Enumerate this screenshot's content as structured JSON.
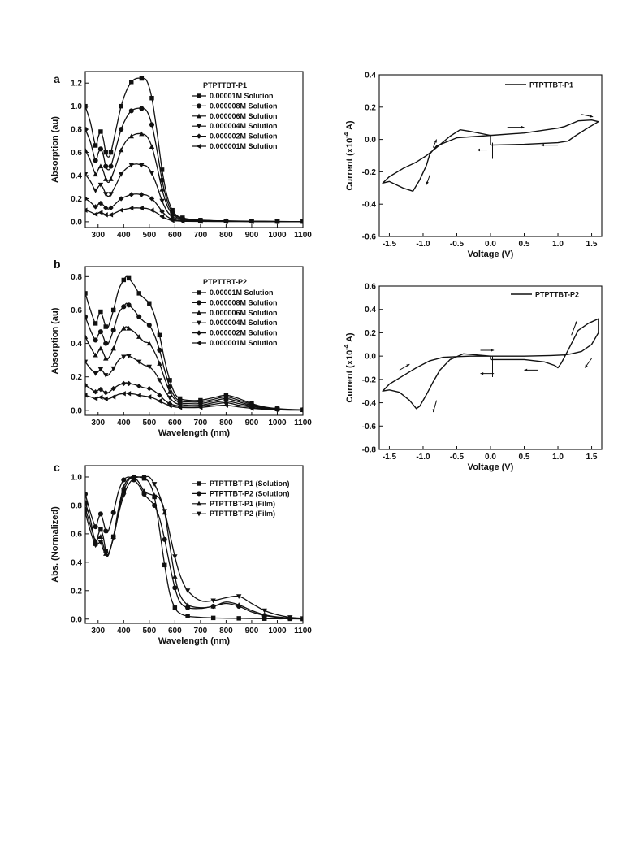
{
  "chart_data": [
    {
      "id": "a",
      "panel_label": "a",
      "type": "line",
      "xlim": [
        250,
        1100
      ],
      "ylim": [
        -0.05,
        1.3
      ],
      "xticks": [
        300,
        400,
        500,
        600,
        700,
        800,
        900,
        1000,
        1100
      ],
      "yticks": [
        0.0,
        0.2,
        0.4,
        0.6,
        0.8,
        1.0,
        1.2
      ],
      "xlabel": "",
      "ylabel": "Absorption (au)",
      "legend_title": "PTPTTBT-P1",
      "legend_position": "top-right",
      "x": [
        250,
        270,
        290,
        300,
        310,
        320,
        330,
        340,
        350,
        370,
        390,
        410,
        430,
        450,
        470,
        490,
        510,
        530,
        550,
        570,
        590,
        610,
        630,
        650,
        700,
        750,
        800,
        850,
        900,
        950,
        1000,
        1050,
        1100
      ],
      "series": [
        {
          "name": "0.00001M Solution",
          "marker": "square",
          "values": [
            1.0,
            0.86,
            0.66,
            0.73,
            0.78,
            0.72,
            0.6,
            0.56,
            0.6,
            0.8,
            1.0,
            1.13,
            1.21,
            1.24,
            1.24,
            1.22,
            1.07,
            0.78,
            0.45,
            0.22,
            0.1,
            0.05,
            0.035,
            0.025,
            0.015,
            0.01,
            0.008,
            0.006,
            0.005,
            0.004,
            0.003,
            0.002,
            0.002
          ]
        },
        {
          "name": "0.000008M Solution",
          "marker": "circle",
          "values": [
            0.8,
            0.69,
            0.53,
            0.59,
            0.63,
            0.58,
            0.48,
            0.45,
            0.48,
            0.64,
            0.8,
            0.9,
            0.96,
            0.98,
            0.98,
            0.96,
            0.84,
            0.62,
            0.36,
            0.18,
            0.08,
            0.045,
            0.03,
            0.02,
            0.012,
            0.009,
            0.007,
            0.005,
            0.004,
            0.003,
            0.002,
            0.002,
            0.002
          ]
        },
        {
          "name": "0.000006M Solution",
          "marker": "triangle-up",
          "values": [
            0.62,
            0.53,
            0.41,
            0.45,
            0.48,
            0.44,
            0.37,
            0.34,
            0.37,
            0.49,
            0.62,
            0.7,
            0.74,
            0.76,
            0.76,
            0.74,
            0.65,
            0.48,
            0.28,
            0.14,
            0.065,
            0.035,
            0.025,
            0.018,
            0.01,
            0.008,
            0.006,
            0.005,
            0.004,
            0.003,
            0.002,
            0.002,
            0.002
          ]
        },
        {
          "name": "0.000004M Solution",
          "marker": "triangle-down",
          "values": [
            0.41,
            0.35,
            0.27,
            0.3,
            0.32,
            0.29,
            0.24,
            0.22,
            0.24,
            0.32,
            0.41,
            0.46,
            0.49,
            0.5,
            0.49,
            0.48,
            0.42,
            0.31,
            0.18,
            0.09,
            0.045,
            0.025,
            0.018,
            0.013,
            0.008,
            0.006,
            0.005,
            0.004,
            0.003,
            0.002,
            0.002,
            0.002,
            0.001
          ]
        },
        {
          "name": "0.000002M Solution",
          "marker": "diamond",
          "values": [
            0.2,
            0.17,
            0.13,
            0.15,
            0.16,
            0.145,
            0.12,
            0.11,
            0.12,
            0.16,
            0.2,
            0.22,
            0.235,
            0.24,
            0.235,
            0.23,
            0.2,
            0.15,
            0.09,
            0.045,
            0.022,
            0.013,
            0.009,
            0.007,
            0.005,
            0.004,
            0.003,
            0.003,
            0.002,
            0.002,
            0.001,
            0.001,
            0.001
          ]
        },
        {
          "name": "0.000001M Solution",
          "marker": "triangle-left",
          "values": [
            0.1,
            0.085,
            0.065,
            0.075,
            0.08,
            0.072,
            0.06,
            0.055,
            0.06,
            0.08,
            0.1,
            0.11,
            0.118,
            0.12,
            0.118,
            0.115,
            0.1,
            0.075,
            0.045,
            0.023,
            0.011,
            0.007,
            0.005,
            0.004,
            0.003,
            0.002,
            0.002,
            0.002,
            0.001,
            0.001,
            0.001,
            0.001,
            0.001
          ]
        }
      ]
    },
    {
      "id": "b",
      "panel_label": "b",
      "type": "line",
      "xlim": [
        250,
        1100
      ],
      "ylim": [
        -0.03,
        0.86
      ],
      "xticks": [
        300,
        400,
        500,
        600,
        700,
        800,
        900,
        1000,
        1100
      ],
      "yticks": [
        0.0,
        0.2,
        0.4,
        0.6,
        0.8
      ],
      "xlabel": "Wavelength (nm)",
      "ylabel": "Absorption (au)",
      "legend_title": "PTPTTBT-P2",
      "legend_position": "top-right",
      "x": [
        250,
        270,
        290,
        300,
        310,
        320,
        330,
        340,
        360,
        380,
        400,
        410,
        420,
        440,
        460,
        480,
        500,
        520,
        540,
        560,
        580,
        600,
        620,
        650,
        700,
        750,
        800,
        850,
        900,
        950,
        1000,
        1050,
        1100
      ],
      "series": [
        {
          "name": "0.00001M Solution",
          "marker": "square",
          "values": [
            0.7,
            0.6,
            0.52,
            0.56,
            0.59,
            0.55,
            0.5,
            0.5,
            0.6,
            0.72,
            0.78,
            0.8,
            0.79,
            0.75,
            0.7,
            0.67,
            0.64,
            0.57,
            0.45,
            0.3,
            0.18,
            0.1,
            0.07,
            0.06,
            0.06,
            0.075,
            0.09,
            0.07,
            0.04,
            0.02,
            0.01,
            0.005,
            0.003
          ]
        },
        {
          "name": "0.000008M Solution",
          "marker": "circle",
          "values": [
            0.56,
            0.48,
            0.42,
            0.45,
            0.47,
            0.44,
            0.4,
            0.4,
            0.48,
            0.58,
            0.62,
            0.64,
            0.63,
            0.6,
            0.56,
            0.53,
            0.51,
            0.45,
            0.36,
            0.24,
            0.14,
            0.08,
            0.055,
            0.05,
            0.05,
            0.065,
            0.08,
            0.06,
            0.035,
            0.017,
            0.008,
            0.004,
            0.003
          ]
        },
        {
          "name": "0.000006M Solution",
          "marker": "triangle-up",
          "values": [
            0.44,
            0.38,
            0.33,
            0.35,
            0.37,
            0.345,
            0.31,
            0.31,
            0.37,
            0.45,
            0.49,
            0.5,
            0.49,
            0.47,
            0.44,
            0.41,
            0.4,
            0.35,
            0.28,
            0.19,
            0.11,
            0.065,
            0.045,
            0.04,
            0.04,
            0.055,
            0.07,
            0.05,
            0.03,
            0.015,
            0.007,
            0.004,
            0.002
          ]
        },
        {
          "name": "0.000004M Solution",
          "marker": "triangle-down",
          "values": [
            0.29,
            0.25,
            0.22,
            0.23,
            0.245,
            0.23,
            0.21,
            0.21,
            0.25,
            0.3,
            0.32,
            0.33,
            0.325,
            0.31,
            0.29,
            0.27,
            0.26,
            0.23,
            0.18,
            0.12,
            0.075,
            0.045,
            0.035,
            0.03,
            0.03,
            0.045,
            0.055,
            0.04,
            0.025,
            0.012,
            0.006,
            0.003,
            0.002
          ]
        },
        {
          "name": "0.000002M Solution",
          "marker": "diamond",
          "values": [
            0.15,
            0.13,
            0.11,
            0.12,
            0.125,
            0.115,
            0.105,
            0.105,
            0.13,
            0.15,
            0.16,
            0.165,
            0.16,
            0.155,
            0.145,
            0.135,
            0.13,
            0.115,
            0.09,
            0.06,
            0.04,
            0.03,
            0.025,
            0.025,
            0.025,
            0.035,
            0.045,
            0.03,
            0.018,
            0.009,
            0.004,
            0.002,
            0.001
          ]
        },
        {
          "name": "0.000001M Solution",
          "marker": "triangle-left",
          "values": [
            0.09,
            0.08,
            0.07,
            0.075,
            0.078,
            0.074,
            0.068,
            0.068,
            0.08,
            0.095,
            0.1,
            0.102,
            0.1,
            0.097,
            0.09,
            0.085,
            0.08,
            0.07,
            0.055,
            0.04,
            0.028,
            0.02,
            0.017,
            0.016,
            0.017,
            0.025,
            0.03,
            0.02,
            0.012,
            0.006,
            0.003,
            0.001,
            0.001
          ]
        }
      ]
    },
    {
      "id": "c",
      "panel_label": "c",
      "type": "line",
      "xlim": [
        250,
        1100
      ],
      "ylim": [
        -0.03,
        1.08
      ],
      "xticks": [
        300,
        400,
        500,
        600,
        700,
        800,
        900,
        1000,
        1100
      ],
      "yticks": [
        0.0,
        0.2,
        0.4,
        0.6,
        0.8,
        1.0
      ],
      "xlabel": "Wavelength (nm)",
      "ylabel": "Abs. (Normalized)",
      "legend_position": "top-right",
      "x": [
        250,
        270,
        290,
        300,
        310,
        320,
        330,
        340,
        360,
        380,
        400,
        420,
        440,
        460,
        480,
        500,
        520,
        540,
        560,
        580,
        600,
        620,
        650,
        700,
        750,
        800,
        850,
        900,
        950,
        1000,
        1050,
        1100
      ],
      "series": [
        {
          "name": "PTPTTBT-P1 (Solution)",
          "marker": "square",
          "values": [
            0.82,
            0.7,
            0.53,
            0.59,
            0.63,
            0.58,
            0.48,
            0.45,
            0.58,
            0.76,
            0.9,
            0.98,
            1.0,
            1.0,
            0.99,
            0.96,
            0.86,
            0.63,
            0.38,
            0.18,
            0.08,
            0.04,
            0.02,
            0.012,
            0.008,
            0.006,
            0.005,
            0.004,
            0.003,
            0.002,
            0.002,
            0.001
          ]
        },
        {
          "name": "PTPTTBT-P2 (Solution)",
          "marker": "circle",
          "values": [
            0.88,
            0.75,
            0.65,
            0.7,
            0.74,
            0.69,
            0.62,
            0.62,
            0.75,
            0.9,
            0.98,
            1.0,
            0.98,
            0.94,
            0.88,
            0.84,
            0.8,
            0.71,
            0.56,
            0.38,
            0.22,
            0.12,
            0.08,
            0.075,
            0.09,
            0.11,
            0.09,
            0.05,
            0.025,
            0.012,
            0.006,
            0.003
          ]
        },
        {
          "name": "PTPTTBT-P1 (Film)",
          "marker": "triangle-up",
          "values": [
            0.78,
            0.66,
            0.55,
            0.57,
            0.58,
            0.52,
            0.46,
            0.45,
            0.58,
            0.78,
            0.93,
            0.99,
            1.0,
            0.96,
            0.9,
            0.88,
            0.87,
            0.85,
            0.75,
            0.52,
            0.3,
            0.17,
            0.1,
            0.08,
            0.09,
            0.12,
            0.1,
            0.06,
            0.03,
            0.015,
            0.008,
            0.004
          ]
        },
        {
          "name": "PTPTTBT-P2 (Film)",
          "marker": "triangle-down",
          "values": [
            0.75,
            0.62,
            0.52,
            0.53,
            0.54,
            0.49,
            0.46,
            0.46,
            0.57,
            0.74,
            0.87,
            0.95,
            0.99,
            1.0,
            1.0,
            1.0,
            0.95,
            0.87,
            0.76,
            0.6,
            0.44,
            0.31,
            0.2,
            0.13,
            0.13,
            0.15,
            0.16,
            0.11,
            0.06,
            0.03,
            0.012,
            0.005
          ]
        }
      ]
    },
    {
      "id": "cv1",
      "type": "line",
      "xlim": [
        -1.65,
        1.65
      ],
      "ylim": [
        -0.6,
        0.4
      ],
      "xticks": [
        -1.5,
        -1.0,
        -0.5,
        0.0,
        0.5,
        1.0,
        1.5
      ],
      "yticks": [
        -0.6,
        -0.4,
        -0.2,
        0.0,
        0.2,
        0.4
      ],
      "xlabel": "Voltage (V)",
      "ylabel": "Current (x10^-4 A)",
      "legend_position": "top-right",
      "series": [
        {
          "name": "PTPTTBT-P1",
          "x": [
            0.0,
            0.5,
            1.0,
            1.15,
            1.25,
            1.4,
            1.6,
            1.5,
            1.3,
            1.1,
            1.0,
            0.5,
            0.0,
            -0.5,
            -0.8,
            -0.9,
            -0.95,
            -1.05,
            -1.15,
            -1.3,
            -1.5,
            -1.6,
            -1.5,
            -1.3,
            -1.1,
            -0.95,
            -0.8,
            -0.6,
            -0.45,
            -0.3,
            0.0
          ],
          "y": [
            -0.035,
            -0.03,
            -0.02,
            -0.01,
            0.02,
            0.06,
            0.11,
            0.12,
            0.115,
            0.08,
            0.07,
            0.04,
            0.025,
            0.01,
            -0.04,
            -0.09,
            -0.16,
            -0.25,
            -0.32,
            -0.3,
            -0.26,
            -0.27,
            -0.23,
            -0.18,
            -0.14,
            -0.1,
            -0.05,
            0.02,
            0.06,
            0.05,
            0.025
          ]
        }
      ]
    },
    {
      "id": "cv2",
      "type": "line",
      "xlim": [
        -1.65,
        1.65
      ],
      "ylim": [
        -0.8,
        0.6
      ],
      "xticks": [
        -1.5,
        -1.0,
        -0.5,
        0.0,
        0.5,
        1.0,
        1.5
      ],
      "yticks": [
        -0.8,
        -0.6,
        -0.4,
        -0.2,
        0.0,
        0.2,
        0.4,
        0.6
      ],
      "xlabel": "Voltage (V)",
      "ylabel": "Current (x10^-4 A)",
      "legend_position": "top-right",
      "series": [
        {
          "name": "PTPTTBT-P2",
          "x": [
            0.0,
            0.5,
            0.8,
            0.95,
            1.0,
            1.05,
            1.15,
            1.3,
            1.45,
            1.6,
            1.6,
            1.5,
            1.35,
            1.2,
            1.1,
            0.9,
            0.5,
            0.0,
            -0.4,
            -0.6,
            -0.75,
            -0.85,
            -0.95,
            -1.05,
            -1.1,
            -1.2,
            -1.35,
            -1.5,
            -1.6,
            -1.5,
            -1.3,
            -1.1,
            -0.9,
            -0.7,
            -0.5,
            -0.3,
            0.0
          ],
          "y": [
            -0.03,
            -0.03,
            -0.05,
            -0.08,
            -0.1,
            -0.06,
            0.05,
            0.22,
            0.28,
            0.32,
            0.2,
            0.1,
            0.04,
            0.02,
            0.01,
            0.005,
            0.0,
            0.0,
            0.02,
            -0.03,
            -0.12,
            -0.22,
            -0.33,
            -0.43,
            -0.45,
            -0.38,
            -0.31,
            -0.29,
            -0.3,
            -0.24,
            -0.17,
            -0.1,
            -0.04,
            -0.01,
            -0.005,
            0.0,
            0.0
          ]
        }
      ]
    }
  ]
}
